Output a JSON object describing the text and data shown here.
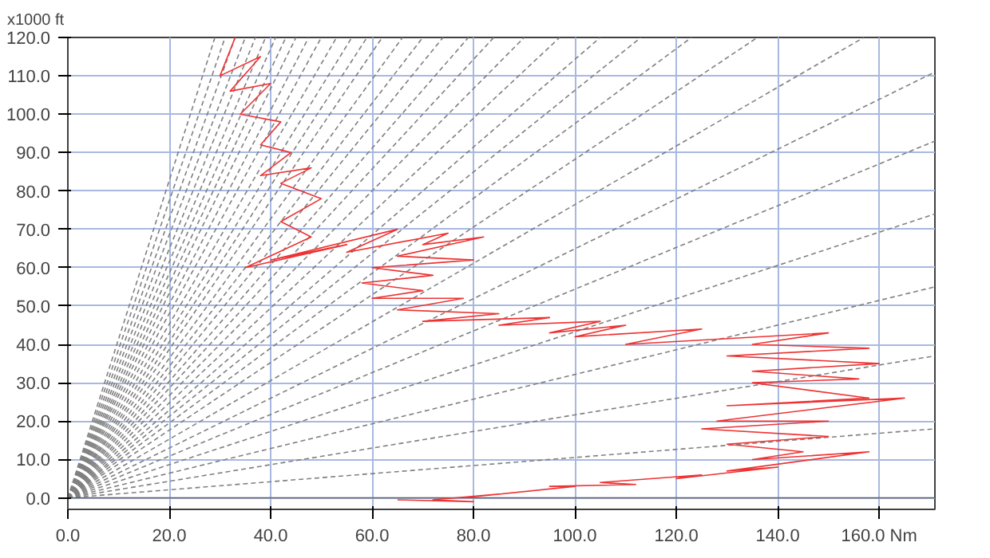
{
  "chart_data": {
    "type": "line",
    "ylabel": "x1000 ft",
    "xlim": [
      0,
      171
    ],
    "ylim": [
      -3,
      120
    ],
    "xticks": [
      {
        "value": 0,
        "label": "0.0"
      },
      {
        "value": 20,
        "label": "20.0"
      },
      {
        "value": 40,
        "label": "40.0"
      },
      {
        "value": 60,
        "label": "60.0"
      },
      {
        "value": 80,
        "label": "80.0"
      },
      {
        "value": 100,
        "label": "100.0"
      },
      {
        "value": 120,
        "label": "120.0"
      },
      {
        "value": 140,
        "label": "140.0"
      },
      {
        "value": 160,
        "label": "160.0 Nm"
      }
    ],
    "yticks": [
      {
        "value": 0,
        "label": "0.0"
      },
      {
        "value": 10,
        "label": "10.0"
      },
      {
        "value": 20,
        "label": "20.0"
      },
      {
        "value": 30,
        "label": "30.0"
      },
      {
        "value": 40,
        "label": "40.0"
      },
      {
        "value": 50,
        "label": "50.0"
      },
      {
        "value": 60,
        "label": "60.0"
      },
      {
        "value": 70,
        "label": "70.0"
      },
      {
        "value": 80,
        "label": "80.0"
      },
      {
        "value": 90,
        "label": "90.0"
      },
      {
        "value": 100,
        "label": "100.0"
      },
      {
        "value": 110,
        "label": "110.0"
      },
      {
        "value": 120,
        "label": "120.0"
      }
    ],
    "grid": true,
    "series": [
      {
        "color": "#808080",
        "line_style": "dashed",
        "x": [
          0,
          29
        ],
        "values": [
          0,
          120
        ]
      },
      {
        "color": "#808080",
        "line_style": "dashed",
        "x": [
          0,
          31
        ],
        "values": [
          0,
          120
        ]
      },
      {
        "color": "#808080",
        "line_style": "dashed",
        "x": [
          0,
          33
        ],
        "values": [
          0,
          120
        ]
      },
      {
        "color": "#808080",
        "line_style": "dashed",
        "x": [
          0,
          35
        ],
        "values": [
          0,
          120
        ]
      },
      {
        "color": "#808080",
        "line_style": "dashed",
        "x": [
          0,
          37
        ],
        "values": [
          0,
          120
        ]
      },
      {
        "color": "#808080",
        "line_style": "dashed",
        "x": [
          0,
          39
        ],
        "values": [
          0,
          120
        ]
      },
      {
        "color": "#808080",
        "line_style": "dashed",
        "x": [
          0,
          41
        ],
        "values": [
          0,
          120
        ]
      },
      {
        "color": "#808080",
        "line_style": "dashed",
        "x": [
          0,
          43
        ],
        "values": [
          0,
          120
        ]
      },
      {
        "color": "#808080",
        "line_style": "dashed",
        "x": [
          0,
          45
        ],
        "values": [
          0,
          120
        ]
      },
      {
        "color": "#808080",
        "line_style": "dashed",
        "x": [
          0,
          47.5
        ],
        "values": [
          0,
          120
        ]
      },
      {
        "color": "#808080",
        "line_style": "dashed",
        "x": [
          0,
          50
        ],
        "values": [
          0,
          120
        ]
      },
      {
        "color": "#808080",
        "line_style": "dashed",
        "x": [
          0,
          53
        ],
        "values": [
          0,
          120
        ]
      },
      {
        "color": "#808080",
        "line_style": "dashed",
        "x": [
          0,
          56
        ],
        "values": [
          0,
          120
        ]
      },
      {
        "color": "#808080",
        "line_style": "dashed",
        "x": [
          0,
          59
        ],
        "values": [
          0,
          120
        ]
      },
      {
        "color": "#808080",
        "line_style": "dashed",
        "x": [
          0,
          62
        ],
        "values": [
          0,
          120
        ]
      },
      {
        "color": "#808080",
        "line_style": "dashed",
        "x": [
          0,
          66
        ],
        "values": [
          0,
          120
        ]
      },
      {
        "color": "#808080",
        "line_style": "dashed",
        "x": [
          0,
          70
        ],
        "values": [
          0,
          120
        ]
      },
      {
        "color": "#808080",
        "line_style": "dashed",
        "x": [
          0,
          74
        ],
        "values": [
          0,
          120
        ]
      },
      {
        "color": "#808080",
        "line_style": "dashed",
        "x": [
          0,
          79
        ],
        "values": [
          0,
          120
        ]
      },
      {
        "color": "#808080",
        "line_style": "dashed",
        "x": [
          0,
          84
        ],
        "values": [
          0,
          120
        ]
      },
      {
        "color": "#808080",
        "line_style": "dashed",
        "x": [
          0,
          90
        ],
        "values": [
          0,
          120
        ]
      },
      {
        "color": "#808080",
        "line_style": "dashed",
        "x": [
          0,
          97
        ],
        "values": [
          0,
          120
        ]
      },
      {
        "color": "#808080",
        "line_style": "dashed",
        "x": [
          0,
          105
        ],
        "values": [
          0,
          120
        ]
      },
      {
        "color": "#808080",
        "line_style": "dashed",
        "x": [
          0,
          113
        ],
        "values": [
          0,
          120
        ]
      },
      {
        "color": "#808080",
        "line_style": "dashed",
        "x": [
          0,
          123
        ],
        "values": [
          0,
          120
        ]
      },
      {
        "color": "#808080",
        "line_style": "dashed",
        "x": [
          0,
          136
        ],
        "values": [
          0,
          120
        ]
      },
      {
        "color": "#808080",
        "line_style": "dashed",
        "x": [
          0,
          157
        ],
        "values": [
          0,
          120
        ]
      },
      {
        "color": "#808080",
        "line_style": "dashed",
        "x": [
          0,
          171
        ],
        "values": [
          0,
          111
        ]
      },
      {
        "color": "#808080",
        "line_style": "dashed",
        "x": [
          0,
          171
        ],
        "values": [
          0,
          93
        ]
      },
      {
        "color": "#808080",
        "line_style": "dashed",
        "x": [
          0,
          171
        ],
        "values": [
          0,
          74
        ]
      },
      {
        "color": "#808080",
        "line_style": "dashed",
        "x": [
          0,
          171
        ],
        "values": [
          0,
          55
        ]
      },
      {
        "color": "#808080",
        "line_style": "dashed",
        "x": [
          0,
          171
        ],
        "values": [
          0,
          37
        ]
      },
      {
        "color": "#808080",
        "line_style": "dashed",
        "x": [
          0,
          171
        ],
        "values": [
          0,
          18
        ]
      },
      {
        "color": "#606060",
        "line_style": "solid",
        "x": [
          0,
          171
        ],
        "values": [
          0,
          0
        ]
      },
      {
        "color": "#ee3333",
        "line_style": "solid",
        "x": [
          65,
          80,
          72,
          85,
          78,
          100,
          95,
          112,
          105,
          125,
          120,
          140,
          130,
          158,
          135,
          145,
          130,
          150,
          125,
          150,
          128,
          165,
          130,
          158,
          135,
          156,
          135,
          160,
          130,
          158,
          135,
          150,
          110,
          125,
          100,
          110,
          95,
          105,
          85,
          95,
          70,
          85,
          65,
          78,
          60,
          70,
          58,
          72,
          60,
          80,
          65,
          82,
          70,
          75,
          55,
          65,
          40,
          55,
          35,
          48,
          42,
          50,
          42,
          48,
          38,
          44,
          38,
          42,
          34,
          40,
          32,
          38,
          30,
          33
        ],
        "values": [
          -0.5,
          -1,
          -0.5,
          1,
          0,
          3,
          3,
          3.5,
          4,
          6,
          5,
          8,
          7,
          12,
          10,
          12,
          14,
          16,
          18,
          20,
          20,
          26,
          24,
          26,
          30,
          31,
          33,
          35,
          37,
          39,
          40,
          43,
          40,
          44,
          42,
          45,
          43,
          46,
          45,
          47,
          46,
          48,
          49,
          52,
          52,
          54,
          56,
          58,
          60,
          62,
          63,
          68,
          66,
          69,
          64,
          70,
          62,
          66,
          60,
          68,
          72,
          78,
          82,
          86,
          84,
          90,
          92,
          98,
          100,
          108,
          106,
          115,
          110,
          120
        ]
      }
    ]
  }
}
